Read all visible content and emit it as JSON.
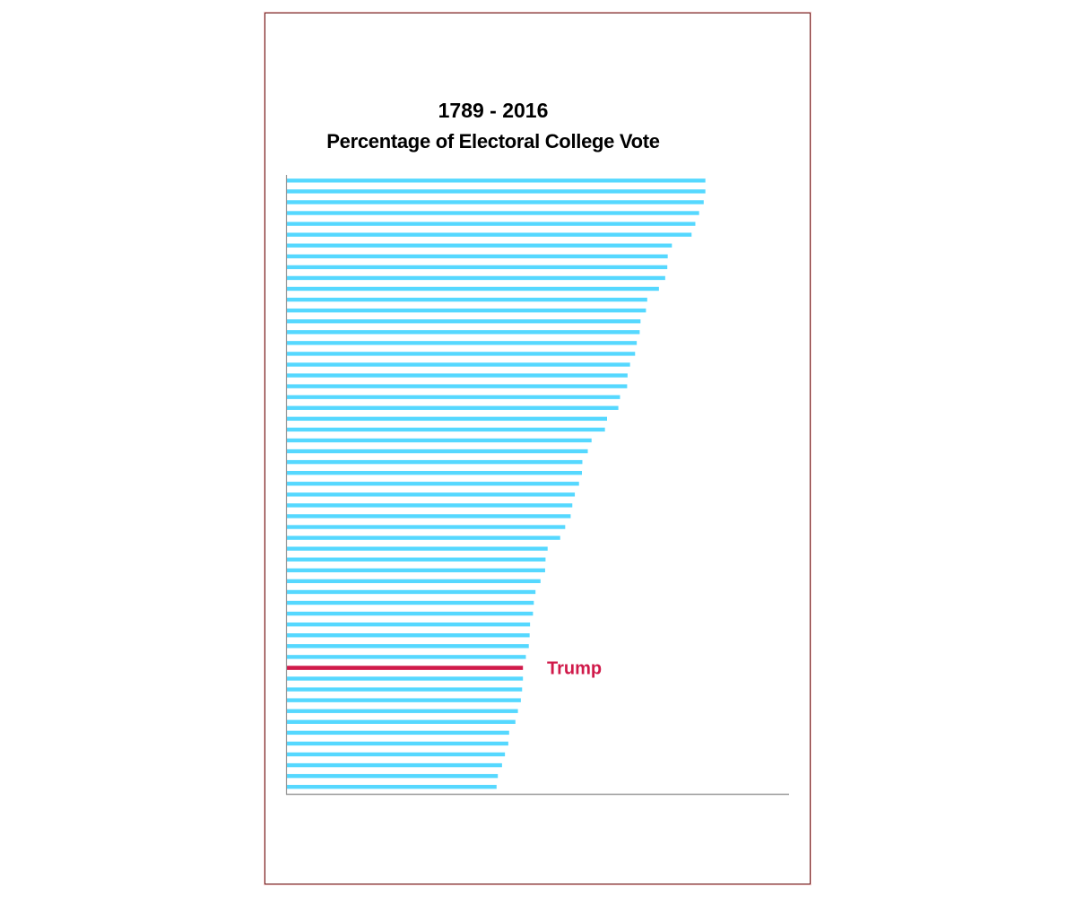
{
  "chart_data": {
    "type": "bar",
    "orientation": "horizontal",
    "title": "1789 - 2016",
    "subtitle": "Percentage of Electoral College Vote",
    "xlabel": "",
    "ylabel": "",
    "xlim": [
      0,
      120
    ],
    "grid": false,
    "values": [
      100,
      100,
      99.6,
      98.5,
      97.6,
      96.7,
      92.0,
      91.0,
      90.9,
      90.4,
      88.9,
      86.1,
      85.8,
      84.5,
      84.3,
      83.6,
      83.2,
      82.0,
      81.4,
      81.3,
      79.6,
      79.2,
      76.5,
      76.0,
      72.8,
      71.9,
      70.6,
      70.5,
      69.8,
      68.8,
      68.2,
      67.8,
      66.5,
      65.3,
      62.3,
      61.8,
      61.7,
      60.6,
      59.4,
      59.0,
      58.8,
      58.1,
      58.0,
      57.8,
      57.1,
      56.4,
      56.4,
      56.2,
      55.9,
      55.2,
      54.6,
      53.1,
      52.9,
      52.1,
      51.4,
      50.4,
      50.1
    ],
    "highlight": {
      "index": 45,
      "label": "Trump"
    },
    "colors": {
      "bar": "#55d8ff",
      "highlight": "#d01a4a",
      "axis": "#999999"
    }
  }
}
